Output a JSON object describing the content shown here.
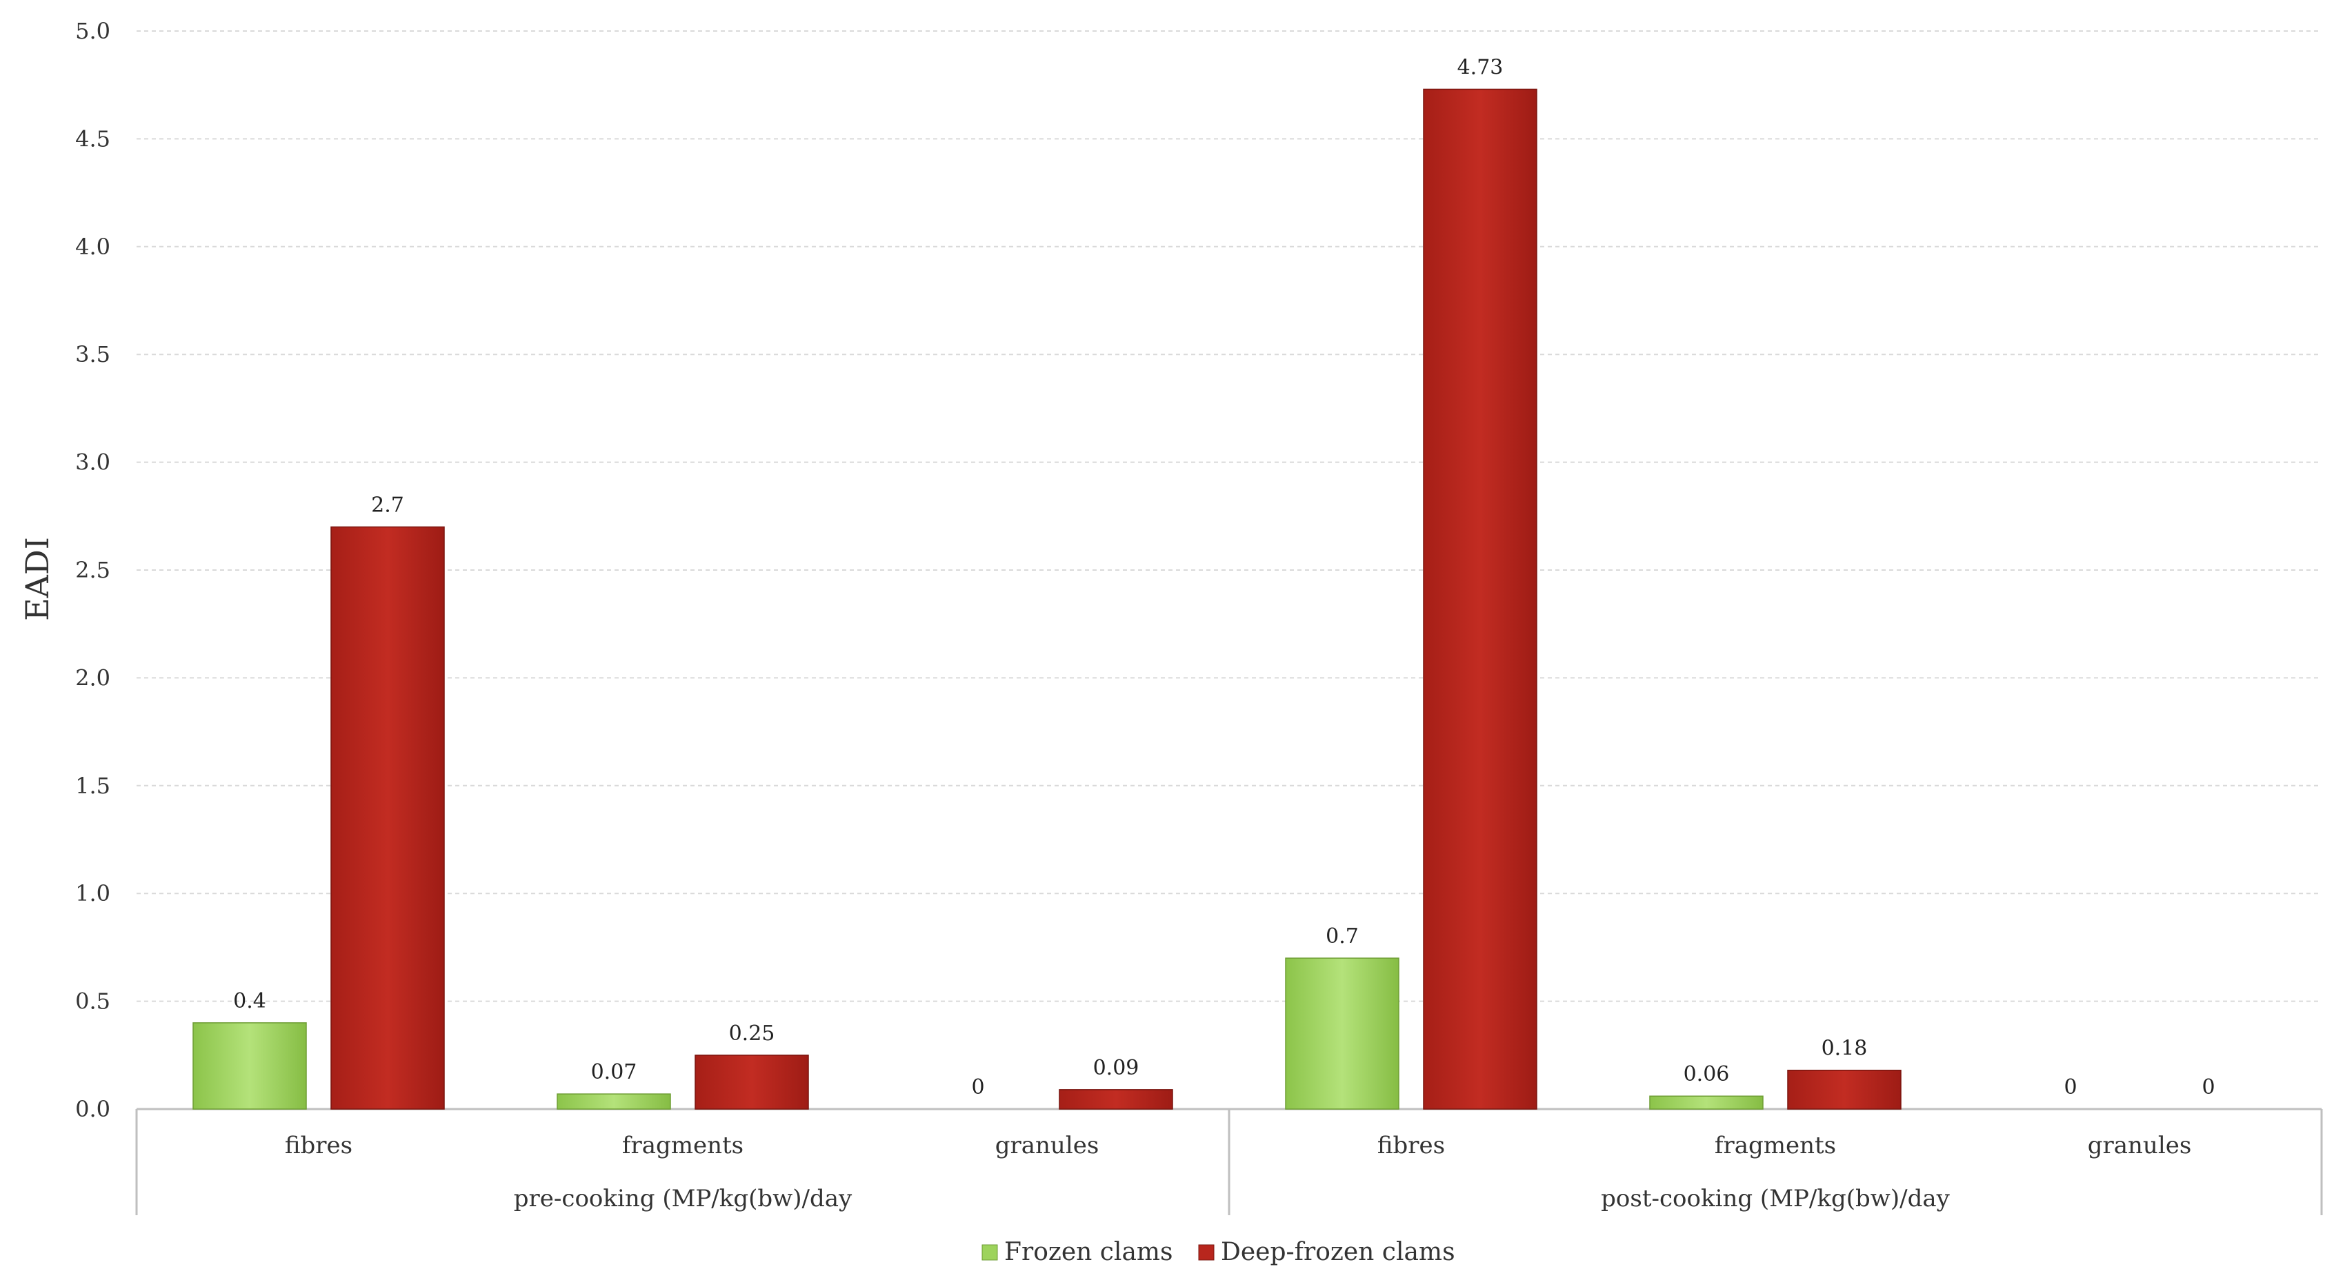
{
  "chart_data": {
    "type": "bar",
    "ylabel": "EADI",
    "ylim": [
      0,
      5.0
    ],
    "yticks": [
      "0.0",
      "0.5",
      "1.0",
      "1.5",
      "2.0",
      "2.5",
      "3.0",
      "3.5",
      "4.0",
      "4.5",
      "5.0"
    ],
    "grid": true,
    "legend_position": "bottom",
    "groups": [
      {
        "label": "pre-cooking  (MP/kg(bw)/day",
        "categories": [
          "fibres",
          "fragments",
          "granules"
        ]
      },
      {
        "label": "post-cooking  (MP/kg(bw)/day",
        "categories": [
          "fibres",
          "fragments",
          "granules"
        ]
      }
    ],
    "series": [
      {
        "name": "Frozen clams",
        "color": "#9dd35c",
        "values": [
          0.4,
          0.07,
          0,
          0.7,
          0.06,
          0
        ],
        "labels": [
          "0.4",
          "0.07",
          "0",
          "0.7",
          "0.06",
          "0"
        ]
      },
      {
        "name": "Deep-frozen clams",
        "color": "#b8261d",
        "values": [
          2.7,
          0.25,
          0.09,
          4.73,
          0.18,
          0
        ],
        "labels": [
          "2.7",
          "0.25",
          "0.09",
          "4.73",
          "0.18",
          "0"
        ]
      }
    ]
  }
}
